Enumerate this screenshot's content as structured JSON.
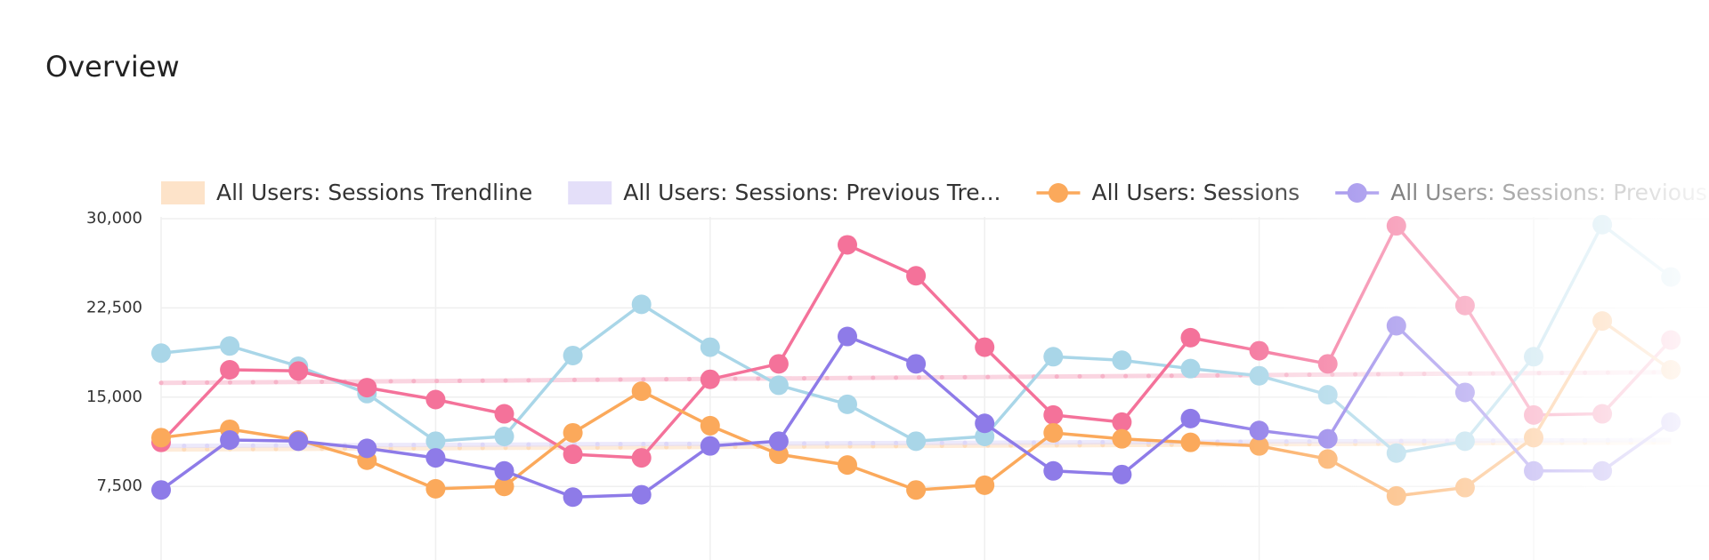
{
  "title": "Overview",
  "chart_data": {
    "type": "line",
    "categories": [
      null,
      null,
      null,
      null,
      null,
      null,
      null,
      null,
      null,
      null,
      null,
      null,
      null,
      null,
      null,
      null,
      null,
      null,
      null,
      null,
      null,
      null,
      null
    ],
    "ylim": [
      0,
      30000
    ],
    "yticks": [
      {
        "value": 7500,
        "label": "7,500"
      },
      {
        "value": 15000,
        "label": "15,000"
      },
      {
        "value": 22500,
        "label": "22,500"
      },
      {
        "value": 30000,
        "label": "30,000"
      }
    ],
    "grid": true,
    "legend": "top",
    "series": [
      {
        "name": "All Users: Sessions Trendline",
        "color": "#fddcbb",
        "trendline": true,
        "values": [
          10600,
          10630,
          10650,
          10680,
          10710,
          10740,
          10760,
          10790,
          10820,
          10850,
          10870,
          10900,
          10930,
          10950,
          10980,
          11010,
          11040,
          11060,
          11090,
          11120,
          11150,
          11170,
          11200
        ]
      },
      {
        "name": "All Users: Sessions: Previous Tre...",
        "color": "#ddd7f8",
        "trendline": true,
        "values": [
          10900,
          10920,
          10950,
          10970,
          10990,
          11010,
          11040,
          11060,
          11080,
          11100,
          11130,
          11150,
          11170,
          11200,
          11220,
          11240,
          11260,
          11290,
          11310,
          11330,
          11360,
          11380,
          11400
        ]
      },
      {
        "color": "#f6b3c8",
        "trendline": true,
        "values": [
          16200,
          16240,
          16280,
          16320,
          16360,
          16400,
          16450,
          16490,
          16530,
          16570,
          16610,
          16650,
          16690,
          16730,
          16770,
          16810,
          16850,
          16900,
          16940,
          16980,
          17020,
          17060,
          17100
        ]
      },
      {
        "color": "#a9d6e8",
        "values": [
          18700,
          19300,
          17600,
          15300,
          11300,
          11700,
          18500,
          22800,
          19200,
          16000,
          14400,
          11300,
          11700,
          18400,
          18100,
          17400,
          16800,
          15200,
          10300,
          11300,
          18400,
          29500,
          25100
        ]
      },
      {
        "color": "#f4729a",
        "values": [
          11200,
          17300,
          17200,
          15800,
          14800,
          13600,
          10200,
          9900,
          16500,
          17800,
          27800,
          25200,
          19200,
          13500,
          12900,
          20000,
          18900,
          17800,
          29400,
          22700,
          13500,
          13600,
          19800
        ]
      },
      {
        "name": "All Users: Sessions",
        "color": "#fba95b",
        "values": [
          11600,
          12300,
          11400,
          9700,
          7300,
          7500,
          12000,
          15500,
          12600,
          10200,
          9300,
          7200,
          7600,
          12000,
          11500,
          11200,
          10900,
          9800,
          6700,
          7400,
          11600,
          21400,
          17300
        ]
      },
      {
        "name": "All Users: Sessions: Previous",
        "color": "#8e7be8",
        "values": [
          7200,
          11400,
          11300,
          10700,
          9900,
          8800,
          6600,
          6800,
          10900,
          11300,
          20100,
          17800,
          12800,
          8800,
          8500,
          13200,
          12200,
          11500,
          21000,
          15400,
          8800,
          8800,
          12900
        ]
      }
    ]
  }
}
